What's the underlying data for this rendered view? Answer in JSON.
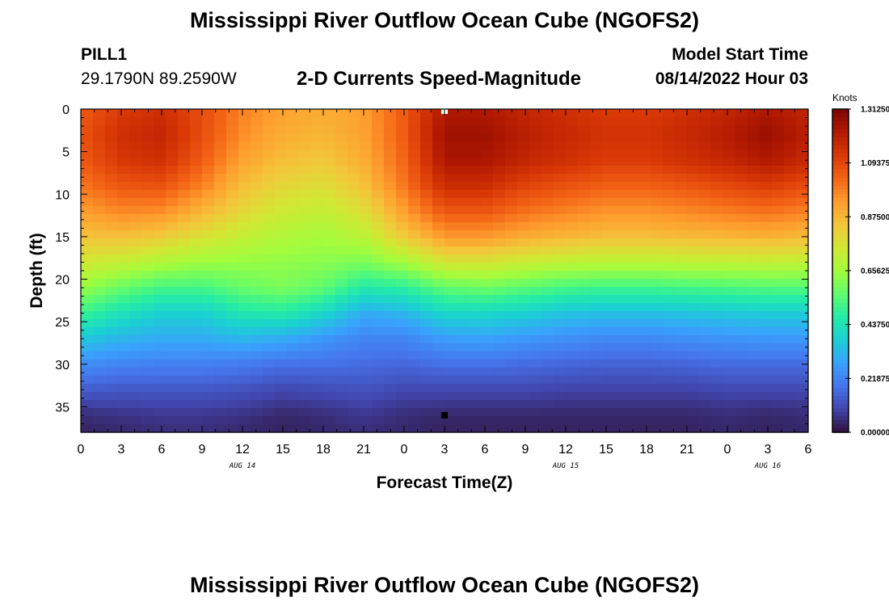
{
  "header": {
    "title": "Mississippi River Outflow Ocean Cube (NGOFS2)",
    "station_id": "PILL1",
    "station_coords": "29.1790N  89.2590W",
    "plot_title": "2-D Currents Speed-Magnitude",
    "model_start_label": "Model Start Time",
    "model_start_value": "08/14/2022 Hour 03"
  },
  "footer": {
    "title": "Mississippi River Outflow Ocean Cube (NGOFS2)"
  },
  "colors": {
    "colormap": [
      "#30123b",
      "#4145ab",
      "#4675ed",
      "#39a2fc",
      "#1bcfd4",
      "#24eca6",
      "#61fc6c",
      "#a4fc3b",
      "#d1e834",
      "#f3c63a",
      "#fe9b2d",
      "#f36315",
      "#d93806",
      "#b11901",
      "#7a0402"
    ],
    "markers": [
      "#ffffff",
      "#000000"
    ]
  },
  "chart_data": {
    "type": "heatmap",
    "title": "2-D Currents Speed-Magnitude",
    "xlabel": "Forecast Time(Z)",
    "ylabel": "Depth (ft)",
    "x_ticks": [
      "0",
      "3",
      "6",
      "9",
      "12",
      "15",
      "18",
      "21",
      "0",
      "3",
      "6",
      "9",
      "12",
      "15",
      "18",
      "21",
      "0",
      "3",
      "6"
    ],
    "x_tick_hours": [
      0,
      3,
      6,
      9,
      12,
      15,
      18,
      21,
      24,
      27,
      30,
      33,
      36,
      39,
      42,
      45,
      48,
      51,
      54
    ],
    "x_range": [
      0,
      54
    ],
    "day_labels": [
      {
        "label": "AUG 14",
        "hour": 12
      },
      {
        "label": "AUG 15",
        "hour": 36
      },
      {
        "label": "AUG 16",
        "hour": 51
      }
    ],
    "y_ticks": [
      "0",
      "5",
      "10",
      "15",
      "20",
      "25",
      "30",
      "35"
    ],
    "y_tick_values": [
      0,
      5,
      10,
      15,
      20,
      25,
      30,
      35
    ],
    "y_range": [
      0,
      38
    ],
    "y_inverted": true,
    "colorbar": {
      "unit": "Knots",
      "min": 0,
      "max": 1.3125,
      "tick_labels": [
        "1.31250",
        "1.09375",
        "0.87500",
        "0.65625",
        "0.43750",
        "0.21875",
        "0.00000"
      ],
      "tick_values": [
        1.3125,
        1.09375,
        0.875,
        0.65625,
        0.4375,
        0.21875,
        0
      ]
    },
    "markers": [
      {
        "hour": 27,
        "depth": 0.2
      },
      {
        "hour": 27,
        "depth": 36
      }
    ],
    "speed_field": {
      "depth_ft": [
        0,
        3,
        6,
        9,
        12,
        15,
        18,
        21,
        24,
        27,
        30,
        33,
        36,
        38
      ],
      "hours": [
        0,
        3,
        6,
        9,
        12,
        15,
        18,
        21,
        24,
        27,
        30,
        33,
        36,
        39,
        42,
        45,
        48,
        51,
        54
      ],
      "speed_knots": [
        [
          1.05,
          1.12,
          1.15,
          1.08,
          0.98,
          0.92,
          0.9,
          0.93,
          1.05,
          1.22,
          1.22,
          1.18,
          1.15,
          1.12,
          1.12,
          1.15,
          1.18,
          1.22,
          1.18
        ],
        [
          1.07,
          1.15,
          1.18,
          1.08,
          0.96,
          0.9,
          0.88,
          0.92,
          1.05,
          1.25,
          1.25,
          1.2,
          1.17,
          1.14,
          1.14,
          1.17,
          1.21,
          1.26,
          1.2
        ],
        [
          1.05,
          1.13,
          1.15,
          1.05,
          0.92,
          0.86,
          0.84,
          0.9,
          1.03,
          1.23,
          1.23,
          1.18,
          1.15,
          1.12,
          1.12,
          1.15,
          1.18,
          1.22,
          1.17
        ],
        [
          1.0,
          1.06,
          1.07,
          0.98,
          0.86,
          0.8,
          0.78,
          0.85,
          1.0,
          1.16,
          1.16,
          1.1,
          1.07,
          1.04,
          1.04,
          1.06,
          1.09,
          1.12,
          1.08
        ],
        [
          0.93,
          0.97,
          0.96,
          0.88,
          0.8,
          0.74,
          0.72,
          0.78,
          0.93,
          1.06,
          1.06,
          1.01,
          0.98,
          0.95,
          0.95,
          0.97,
          0.99,
          1.01,
          0.98
        ],
        [
          0.85,
          0.86,
          0.83,
          0.77,
          0.72,
          0.68,
          0.66,
          0.7,
          0.83,
          0.94,
          0.94,
          0.9,
          0.88,
          0.86,
          0.86,
          0.87,
          0.88,
          0.89,
          0.87
        ],
        [
          0.75,
          0.72,
          0.68,
          0.65,
          0.64,
          0.63,
          0.62,
          0.6,
          0.66,
          0.76,
          0.76,
          0.73,
          0.71,
          0.7,
          0.7,
          0.71,
          0.71,
          0.72,
          0.71
        ],
        [
          0.64,
          0.57,
          0.52,
          0.52,
          0.57,
          0.6,
          0.56,
          0.46,
          0.48,
          0.56,
          0.58,
          0.55,
          0.52,
          0.51,
          0.51,
          0.52,
          0.53,
          0.54,
          0.54
        ],
        [
          0.5,
          0.43,
          0.38,
          0.38,
          0.45,
          0.46,
          0.4,
          0.3,
          0.32,
          0.4,
          0.4,
          0.38,
          0.35,
          0.34,
          0.34,
          0.35,
          0.36,
          0.37,
          0.37
        ],
        [
          0.36,
          0.32,
          0.3,
          0.3,
          0.32,
          0.3,
          0.26,
          0.22,
          0.22,
          0.27,
          0.28,
          0.26,
          0.24,
          0.23,
          0.23,
          0.24,
          0.25,
          0.26,
          0.26
        ],
        [
          0.24,
          0.22,
          0.21,
          0.21,
          0.2,
          0.18,
          0.18,
          0.17,
          0.16,
          0.18,
          0.18,
          0.17,
          0.16,
          0.15,
          0.15,
          0.16,
          0.17,
          0.17,
          0.17
        ],
        [
          0.14,
          0.13,
          0.13,
          0.13,
          0.12,
          0.1,
          0.11,
          0.12,
          0.1,
          0.1,
          0.1,
          0.1,
          0.09,
          0.09,
          0.09,
          0.09,
          0.1,
          0.1,
          0.1
        ],
        [
          0.05,
          0.06,
          0.07,
          0.07,
          0.06,
          0.04,
          0.05,
          0.07,
          0.05,
          0.04,
          0.04,
          0.04,
          0.04,
          0.04,
          0.04,
          0.04,
          0.05,
          0.04,
          0.05
        ],
        [
          0.03,
          0.04,
          0.05,
          0.05,
          0.04,
          0.03,
          0.04,
          0.05,
          0.04,
          0.03,
          0.03,
          0.03,
          0.03,
          0.03,
          0.03,
          0.03,
          0.04,
          0.03,
          0.04
        ]
      ]
    }
  }
}
